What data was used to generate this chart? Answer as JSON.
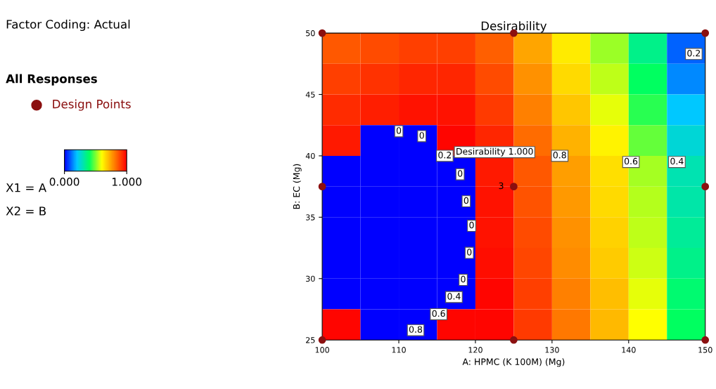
{
  "chart_data": {
    "type": "heatmap",
    "title": "Desirability",
    "xlabel": "A: HPMC (K 100M) (Mg)",
    "ylabel": "B: EC (Mg)",
    "x": [
      102.5,
      107.5,
      112.5,
      117.5,
      122.5,
      127.5,
      132.5,
      137.5,
      142.5,
      147.5
    ],
    "y": [
      48.75,
      46.25,
      43.75,
      41.25,
      38.75,
      36.25,
      33.75,
      31.25,
      28.75,
      26.25
    ],
    "cells": [
      [
        0.86,
        0.88,
        0.9,
        0.9,
        0.85,
        0.74,
        0.63,
        0.52,
        0.35,
        0.1
      ],
      [
        0.9,
        0.92,
        0.94,
        0.94,
        0.88,
        0.77,
        0.66,
        0.55,
        0.4,
        0.14
      ],
      [
        0.93,
        0.95,
        0.97,
        0.97,
        0.91,
        0.8,
        0.69,
        0.58,
        0.43,
        0.2
      ],
      [
        0.96,
        0,
        0,
        0.99,
        0.94,
        0.83,
        0.72,
        0.62,
        0.48,
        0.25
      ],
      [
        0,
        0,
        0,
        0,
        0.96,
        0.86,
        0.75,
        0.65,
        0.53,
        0.3
      ],
      [
        0,
        0,
        0,
        0,
        0.97,
        0.87,
        0.76,
        0.66,
        0.54,
        0.31
      ],
      [
        0,
        0,
        0,
        0,
        0.97,
        0.88,
        0.77,
        0.67,
        0.55,
        0.33
      ],
      [
        0,
        0,
        0,
        0,
        0.98,
        0.89,
        0.78,
        0.68,
        0.56,
        0.35
      ],
      [
        0,
        0,
        0,
        0,
        0.99,
        0.9,
        0.8,
        0.7,
        0.58,
        0.38
      ],
      [
        0.99,
        0,
        0,
        0.99,
        0.99,
        0.91,
        0.81,
        0.71,
        0.6,
        0.4
      ]
    ],
    "clim": [
      0,
      1
    ],
    "cticks": [
      {
        "value": 0,
        "label": "0.000"
      },
      {
        "value": 1,
        "label": "1.000"
      }
    ],
    "xlim": [
      100,
      150
    ],
    "ylim": [
      25,
      50
    ],
    "xticks": [
      100,
      110,
      120,
      130,
      140,
      150
    ],
    "yticks": [
      25,
      30,
      35,
      40,
      45,
      50
    ],
    "series": [
      {
        "name": "Design Points",
        "type": "scatter",
        "color": "#8b1010",
        "x": [
          100,
          100,
          100,
          125,
          125,
          125,
          150,
          150,
          150
        ],
        "values": [
          25,
          37.5,
          50,
          25,
          37.5,
          50,
          25,
          37.5,
          50
        ]
      }
    ],
    "legend": "left",
    "grid": false,
    "annotations": [
      "Factor Coding: Actual",
      "All Responses",
      "X1 = A",
      "X2 = B",
      "0",
      "0",
      "0.2",
      "0",
      "0",
      "0",
      "0",
      "0",
      "0.4",
      "0.6",
      "0.8",
      "0.8",
      "0.6",
      "0.4",
      "0.2",
      "Desirability 1.000",
      {
        "text": "3",
        "x": 125,
        "y": 37.5
      }
    ]
  }
}
